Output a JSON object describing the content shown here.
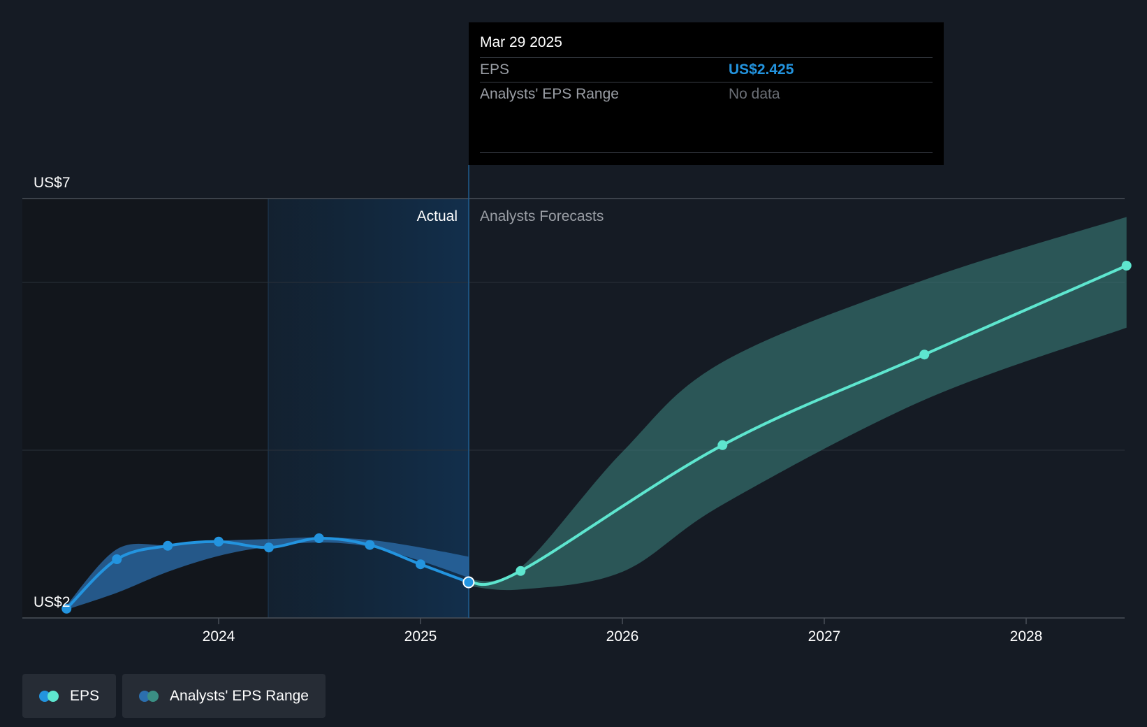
{
  "chart_data": {
    "type": "line",
    "y_axis": {
      "top_label": "US$7",
      "bottom_label": "US$2",
      "ylim": [
        2,
        7
      ]
    },
    "x_ticks": [
      "2024",
      "2025",
      "2026",
      "2027",
      "2028"
    ],
    "regions": {
      "actual_label": "Actual",
      "forecast_label": "Analysts Forecasts"
    },
    "series": [
      {
        "name": "EPS",
        "kind": "actual",
        "color": "#2394df",
        "points": [
          {
            "x": "2023-04-01",
            "y": 2.11
          },
          {
            "x": "2023-07-01",
            "y": 2.7
          },
          {
            "x": "2023-10-01",
            "y": 2.86
          },
          {
            "x": "2024-01-01",
            "y": 2.91
          },
          {
            "x": "2024-04-01",
            "y": 2.84
          },
          {
            "x": "2024-07-01",
            "y": 2.95
          },
          {
            "x": "2024-10-01",
            "y": 2.87
          },
          {
            "x": "2025-01-01",
            "y": 2.64
          },
          {
            "x": "2025-03-29",
            "y": 2.425
          }
        ]
      },
      {
        "name": "EPS",
        "kind": "forecast",
        "color": "#5ee6cf",
        "points": [
          {
            "x": "2025-03-29",
            "y": 2.425
          },
          {
            "x": "2025-07-01",
            "y": 2.56
          },
          {
            "x": "2026-07-01",
            "y": 4.06
          },
          {
            "x": "2027-07-01",
            "y": 5.14
          },
          {
            "x": "2028-07-01",
            "y": 6.2
          }
        ]
      }
    ],
    "range_bands": [
      {
        "name": "Analysts' EPS Range",
        "kind": "actual",
        "color": "#2c6fae",
        "points": [
          {
            "x": "2023-04-01",
            "low": 2.1,
            "high": 2.15
          },
          {
            "x": "2023-07-01",
            "low": 2.3,
            "high": 2.82
          },
          {
            "x": "2023-10-01",
            "low": 2.55,
            "high": 2.87
          },
          {
            "x": "2024-01-01",
            "low": 2.74,
            "high": 2.92
          },
          {
            "x": "2024-04-01",
            "low": 2.85,
            "high": 2.94
          },
          {
            "x": "2024-07-01",
            "low": 2.9,
            "high": 2.96
          },
          {
            "x": "2024-10-01",
            "low": 2.85,
            "high": 2.93
          },
          {
            "x": "2025-01-01",
            "low": 2.68,
            "high": 2.84
          },
          {
            "x": "2025-03-29",
            "low": 2.48,
            "high": 2.73
          }
        ]
      },
      {
        "name": "Analysts' EPS Range",
        "kind": "forecast",
        "color": "#3b7f7a",
        "points": [
          {
            "x": "2025-03-29",
            "low": 2.38,
            "high": 2.45
          },
          {
            "x": "2025-07-01",
            "low": 2.34,
            "high": 2.6
          },
          {
            "x": "2026-01-01",
            "low": 2.55,
            "high": 3.98
          },
          {
            "x": "2026-07-01",
            "low": 3.35,
            "high": 5.05
          },
          {
            "x": "2027-07-01",
            "low": 4.6,
            "high": 6.03
          },
          {
            "x": "2028-07-01",
            "low": 5.46,
            "high": 6.78
          }
        ]
      }
    ],
    "grid": true,
    "legend_position": "bottom-left"
  },
  "tooltip": {
    "date": "Mar 29 2025",
    "rows": [
      {
        "label": "EPS",
        "value": "US$2.425"
      },
      {
        "label": "Analysts' EPS Range",
        "value": "No data"
      }
    ]
  },
  "legend": {
    "items": [
      {
        "label": "EPS",
        "colors": [
          "#2394df",
          "#5ee6cf"
        ]
      },
      {
        "label": "Analysts' EPS Range",
        "colors": [
          "#2c6fae",
          "#3b8f84"
        ]
      }
    ]
  }
}
